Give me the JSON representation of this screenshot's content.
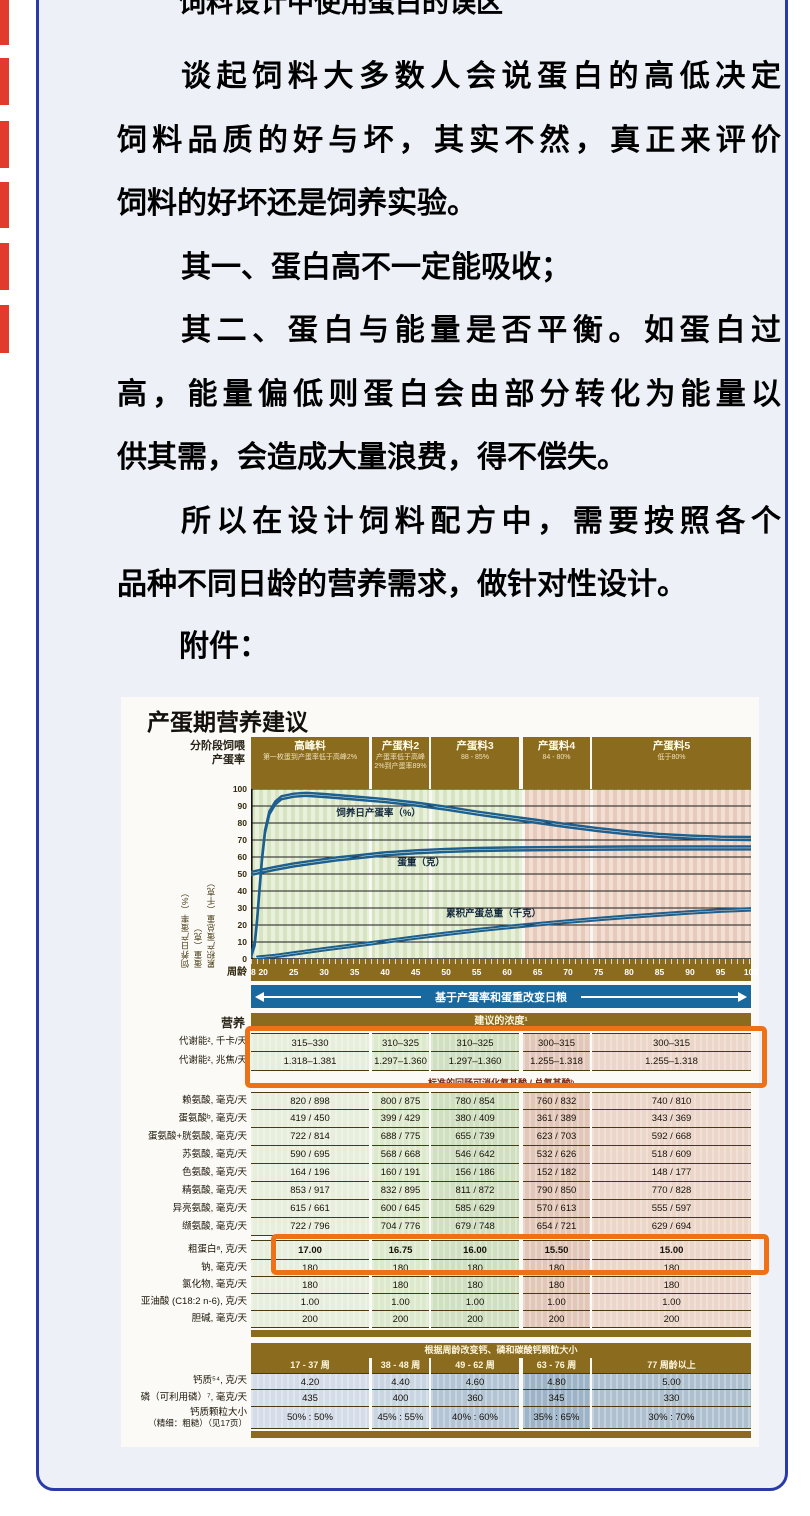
{
  "colors": {
    "card_border": "#2a3aa8",
    "card_bg": "#edf1f7",
    "red_strip": "#e23b2e",
    "band_brown": "#8b6b1e",
    "band_blue": "#19689e",
    "highlight_orange": "#ee7118",
    "curve_blue": "#1d5f8e"
  },
  "article": {
    "title": "饲料设计中使用蛋白的误区",
    "lines": [
      {
        "text": "谈起饲料大多数人会说蛋白的高低决定",
        "indent": true,
        "fill": true
      },
      {
        "text": "饲料品质的好与坏，其实不然，真正来评价",
        "fill": true
      },
      {
        "text": "饲料的好坏还是饲养实验。"
      },
      {
        "text": "其一、蛋白高不一定能吸收；",
        "indent": true
      },
      {
        "text": "其二、蛋白与能量是否平衡。如蛋白过",
        "indent": true,
        "fill": true
      },
      {
        "text": "高，能量偏低则蛋白会由部分转化为能量以",
        "fill": true
      },
      {
        "text": "供其需，会造成大量浪费，得不偿失。"
      },
      {
        "text": "所以在设计饲料配方中，需要按照各个",
        "indent": true,
        "fill": true
      },
      {
        "text": "品种不同日龄的营养需求，做针对性设计。"
      }
    ],
    "attachment_label": "附件："
  },
  "chart_data": {
    "type": "line",
    "title": "产蛋期营养建议",
    "phase_header": {
      "left_label_1": "分阶段饲喂",
      "left_label_2": "产蛋率",
      "columns": [
        {
          "name": "高峰料",
          "sub": "第一枚蛋到产蛋率低于高峰2%"
        },
        {
          "name": "产蛋料2",
          "sub": "产蛋率低于高峰2%到产蛋率89%"
        },
        {
          "name": "产蛋料3",
          "sub": "88 - 85%"
        },
        {
          "name": "产蛋料4",
          "sub": "84 - 80%"
        },
        {
          "name": "产蛋料5",
          "sub": "低于80%"
        }
      ]
    },
    "xlabel": "周龄",
    "xlim": [
      18,
      100
    ],
    "x_ticks": [
      18,
      20,
      25,
      30,
      35,
      40,
      45,
      50,
      55,
      60,
      65,
      70,
      75,
      80,
      85,
      90,
      95,
      100
    ],
    "ylim": [
      0,
      100
    ],
    "y_ticks": [
      0,
      10,
      20,
      30,
      40,
      50,
      60,
      70,
      80,
      90,
      100
    ],
    "grid": true,
    "y_axis_lines": [
      "饲养日产蛋率（%）",
      "蛋重（克）",
      "累积产蛋总重（千克）"
    ],
    "series": [
      {
        "name": "饲养日产蛋率（%）",
        "label_at": [
          32,
          84
        ],
        "points": [
          [
            18,
            1
          ],
          [
            18.6,
            8
          ],
          [
            19,
            22
          ],
          [
            19.4,
            40
          ],
          [
            19.8,
            58
          ],
          [
            20.3,
            74
          ],
          [
            21,
            85
          ],
          [
            22,
            91
          ],
          [
            23,
            94
          ],
          [
            25,
            95.5
          ],
          [
            27,
            96
          ],
          [
            30,
            95.3
          ],
          [
            35,
            93.8
          ],
          [
            40,
            92.3
          ],
          [
            45,
            90.3
          ],
          [
            50,
            87.8
          ],
          [
            55,
            85
          ],
          [
            60,
            82.5
          ],
          [
            65,
            80
          ],
          [
            70,
            77.5
          ],
          [
            75,
            75.2
          ],
          [
            80,
            73.3
          ],
          [
            85,
            71.8
          ],
          [
            90,
            70.8
          ],
          [
            95,
            70.2
          ],
          [
            100,
            70
          ]
        ]
      },
      {
        "name": "蛋重（克）",
        "label_at": [
          42,
          55
        ],
        "points": [
          [
            18,
            49.5
          ],
          [
            20,
            51
          ],
          [
            22,
            52.5
          ],
          [
            25,
            54.5
          ],
          [
            28,
            56
          ],
          [
            32,
            58
          ],
          [
            36,
            59.5
          ],
          [
            40,
            61
          ],
          [
            45,
            62.2
          ],
          [
            50,
            63
          ],
          [
            55,
            63.5
          ],
          [
            60,
            63.8
          ],
          [
            70,
            64.2
          ],
          [
            80,
            64.4
          ],
          [
            90,
            64.5
          ],
          [
            100,
            64.5
          ]
        ]
      },
      {
        "name": "累积产蛋总重（千克）",
        "label_at": [
          50,
          25
        ],
        "points": [
          [
            19,
            0
          ],
          [
            22,
            1
          ],
          [
            26,
            3
          ],
          [
            30,
            5
          ],
          [
            35,
            7.3
          ],
          [
            40,
            9.6
          ],
          [
            45,
            11.9
          ],
          [
            50,
            14.1
          ],
          [
            55,
            16.2
          ],
          [
            60,
            18
          ],
          [
            65,
            19.7
          ],
          [
            70,
            21.3
          ],
          [
            75,
            22.8
          ],
          [
            80,
            24.2
          ],
          [
            85,
            25.5
          ],
          [
            90,
            26.7
          ],
          [
            95,
            27.7
          ],
          [
            100,
            28.5
          ]
        ]
      }
    ],
    "change_band": "基于产蛋率和蛋重改变日粮",
    "table": {
      "nutrition_label": "营养",
      "concentration_band": "建议的浓度¹",
      "me_rows": [
        {
          "label": "代谢能², 千卡/天",
          "values": [
            "315–330",
            "310–325",
            "310–325",
            "300–315",
            "300–315"
          ]
        },
        {
          "label": "代谢能², 兆焦/天",
          "values": [
            "1.318–1.381",
            "1.297–1.360",
            "1.297–1.360",
            "1.255–1.318",
            "1.255–1.318"
          ]
        }
      ],
      "amino_band": "标准的回肠可消化氨基酸 / 总氨基酸ᵇ",
      "amino_rows": [
        {
          "label": "赖氨酸, 毫克/天",
          "values": [
            "820 / 898",
            "800 / 875",
            "780 / 854",
            "760 / 832",
            "740 / 810"
          ]
        },
        {
          "label": "蛋氨酸ᵇ, 毫克/天",
          "values": [
            "419 / 450",
            "399 / 429",
            "380 / 409",
            "361 / 389",
            "343 / 369"
          ]
        },
        {
          "label": "蛋氨酸+胱氨酸, 毫克/天",
          "values": [
            "722 / 814",
            "688 / 775",
            "655 / 739",
            "623 / 703",
            "592 / 668"
          ]
        },
        {
          "label": "苏氨酸, 毫克/天",
          "values": [
            "590 / 695",
            "568 / 668",
            "546 / 642",
            "532 / 626",
            "518 / 609"
          ]
        },
        {
          "label": "色氨酸, 毫克/天",
          "values": [
            "164 / 196",
            "160 / 191",
            "156 / 186",
            "152 / 182",
            "148 / 177"
          ]
        },
        {
          "label": "精氨酸, 毫克/天",
          "values": [
            "853 / 917",
            "832 / 895",
            "811 / 872",
            "790 / 850",
            "770 / 828"
          ]
        },
        {
          "label": "异亮氨酸, 毫克/天",
          "values": [
            "615 / 661",
            "600 / 645",
            "585 / 629",
            "570 / 613",
            "555 / 597"
          ]
        },
        {
          "label": "缬氨酸, 毫克/天",
          "values": [
            "722 / 796",
            "704 / 776",
            "679 / 748",
            "654 / 721",
            "629 / 694"
          ]
        }
      ],
      "cp_row": {
        "label": "粗蛋白ᵃ, 克/天",
        "values": [
          "17.00",
          "16.75",
          "16.00",
          "15.50",
          "15.00"
        ]
      },
      "mineral_rows": [
        {
          "label": "钠, 毫克/天",
          "values": [
            "180",
            "180",
            "180",
            "180",
            "180"
          ]
        },
        {
          "label": "氯化物, 毫克/天",
          "values": [
            "180",
            "180",
            "180",
            "180",
            "180"
          ]
        },
        {
          "label": "亚油酸 (C18:2 n-6), 克/天",
          "values": [
            "1.00",
            "1.00",
            "1.00",
            "1.00",
            "1.00"
          ]
        },
        {
          "label": "胆碱, 毫克/天",
          "values": [
            "200",
            "200",
            "200",
            "200",
            "200"
          ]
        }
      ],
      "calcium_band": "根据周龄改变钙、磷和碳酸钙颗粒大小",
      "age_columns": [
        "17 - 37 周",
        "38 - 48 周",
        "49 - 62 周",
        "63 - 76 周",
        "77 周龄以上"
      ],
      "calcium_rows": [
        {
          "label": "钙质⁵⁴, 克/天",
          "values": [
            "4.20",
            "4.40",
            "4.60",
            "4.80",
            "5.00"
          ]
        },
        {
          "label": "磷（可利用磷）⁷, 毫克/天",
          "values": [
            "435",
            "400",
            "360",
            "345",
            "330"
          ]
        },
        {
          "label": "钙质颗粒大小",
          "label2": "（精细：粗糙）（见17页）",
          "values": [
            "50% : 50%",
            "45% : 55%",
            "40% : 60%",
            "35% : 65%",
            "30% : 70%"
          ]
        }
      ]
    }
  }
}
